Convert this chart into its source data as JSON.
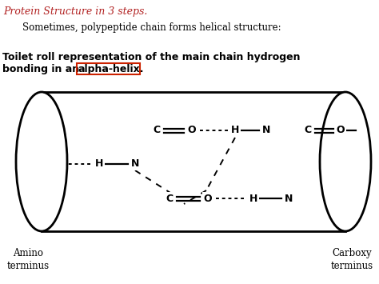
{
  "title_text": "Protein Structure in 3 steps.",
  "title_color": "#b22222",
  "subtitle_text": "Sometimes, polypeptide chain forms helical structure:",
  "label_line1": "Toilet roll representation of the main chain hydrogen",
  "label_line2_pre": "bonding in an ",
  "label_line2_highlight": "alpha-helix.",
  "amino_label": "Amino\nterminus",
  "carboxy_label": "Carboxy\nterminus",
  "bg_color": "#ffffff",
  "text_color": "#000000",
  "highlight_box_color": "#cc2200"
}
